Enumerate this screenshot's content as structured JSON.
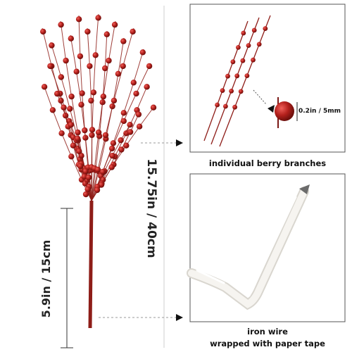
{
  "labels": {
    "total_height": "15.75in / 40cm",
    "stem_height": "5.9in / 15cm",
    "berry_size": "0.2in / 5mm",
    "caption_top": "individual berry branches",
    "caption_bottom_line1": "iron wire",
    "caption_bottom_line2": "wrapped with paper tape"
  },
  "colors": {
    "berry": "#b3201c",
    "stem": "#8e1d18",
    "wire": "#f4f2ee",
    "arrow": "#111111"
  }
}
